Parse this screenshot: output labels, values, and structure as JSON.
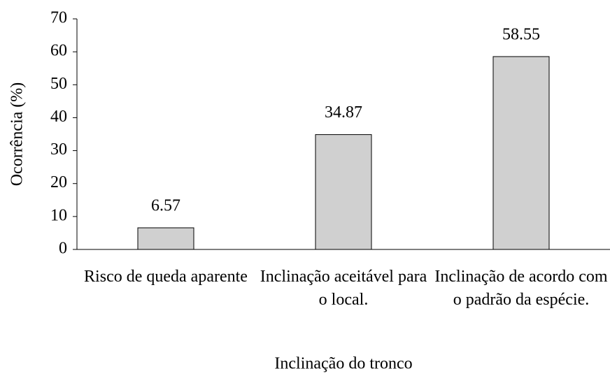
{
  "chart_data": {
    "type": "bar",
    "categories": [
      "Risco de queda aparente",
      "Inclinação aceitável para o local.",
      "Inclinação de acordo com o padrão da espécie."
    ],
    "values": [
      6.57,
      34.87,
      58.55
    ],
    "color": "#d0d0d0",
    "xlabel": "Inclinação do tronco",
    "ylabel": "Ocorrência (%)",
    "ylim": [
      0,
      70
    ],
    "yticks": [
      0,
      10,
      20,
      30,
      40,
      50,
      60,
      70
    ],
    "grid": false
  }
}
